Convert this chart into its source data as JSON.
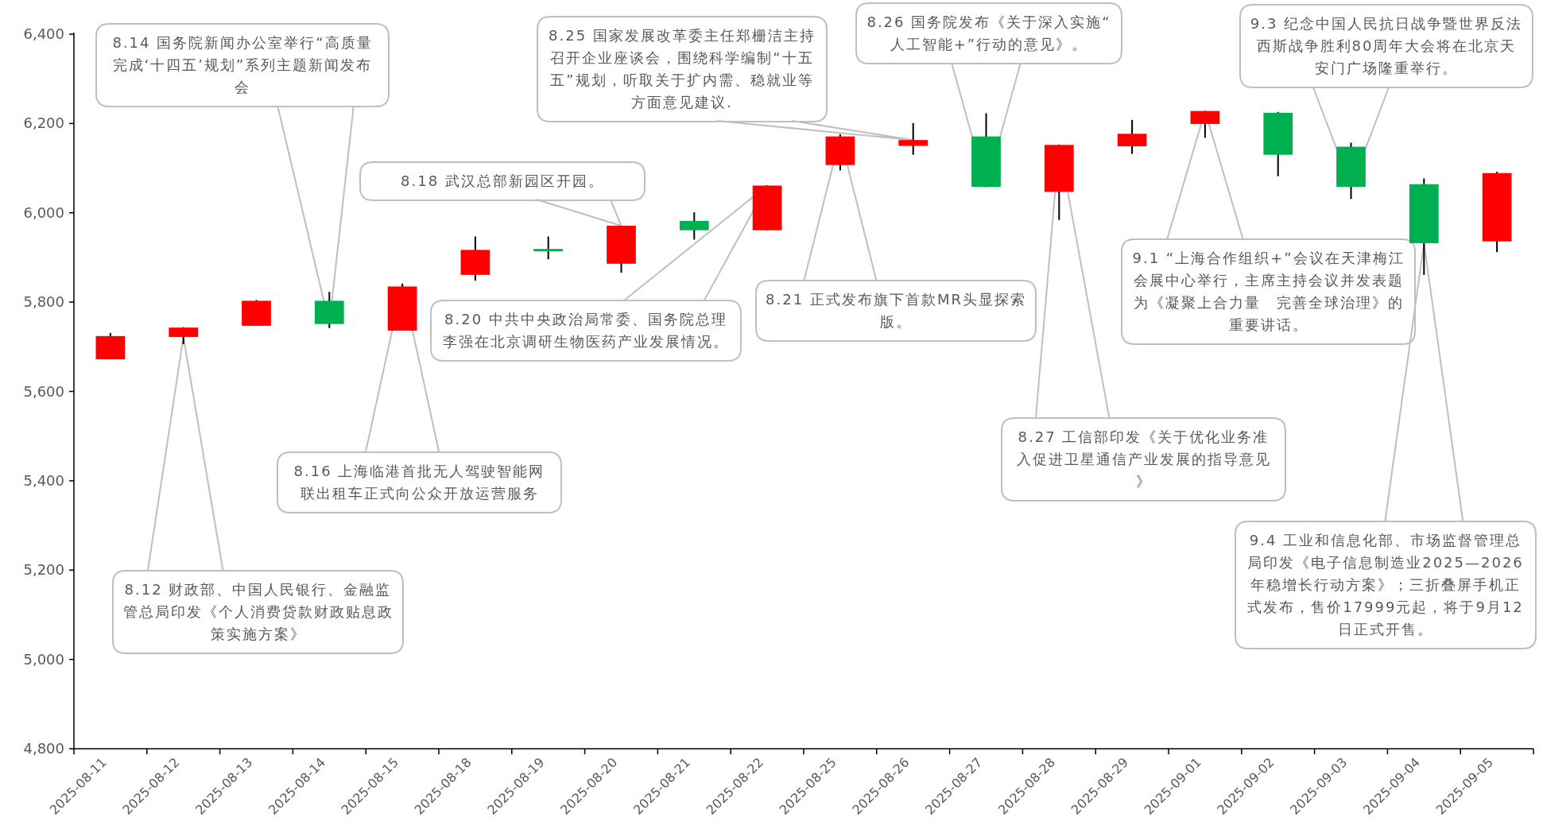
{
  "chart_data": {
    "type": "candlestick",
    "categories": [
      "2025-08-11",
      "2025-08-12",
      "2025-08-13",
      "2025-08-14",
      "2025-08-15",
      "2025-08-18",
      "2025-08-19",
      "2025-08-20",
      "2025-08-21",
      "2025-08-22",
      "2025-08-25",
      "2025-08-26",
      "2025-08-27",
      "2025-08-28",
      "2025-08-29",
      "2025-09-01",
      "2025-09-02",
      "2025-09-03",
      "2025-09-04",
      "2025-09-05"
    ],
    "ohlc": [
      [
        5672,
        5731,
        5672,
        5724
      ],
      [
        5722,
        5744,
        5706,
        5743
      ],
      [
        5747,
        5805,
        5747,
        5803
      ],
      [
        5803,
        5823,
        5742,
        5751
      ],
      [
        5736,
        5841,
        5736,
        5835
      ],
      [
        5861,
        5947,
        5848,
        5917
      ],
      [
        5917,
        5947,
        5896,
        5916
      ],
      [
        5886,
        5971,
        5866,
        5971
      ],
      [
        5982,
        6001,
        5940,
        5961
      ],
      [
        5961,
        6061,
        5961,
        6061
      ],
      [
        6107,
        6176,
        6095,
        6171
      ],
      [
        6150,
        6201,
        6130,
        6163
      ],
      [
        6171,
        6223,
        6058,
        6058
      ],
      [
        6047,
        6152,
        5984,
        6152
      ],
      [
        6149,
        6208,
        6132,
        6177
      ],
      [
        6199,
        6228,
        6168,
        6228
      ],
      [
        6224,
        6226,
        6082,
        6130
      ],
      [
        6148,
        6157,
        6031,
        6058
      ],
      [
        6064,
        6077,
        5861,
        5932
      ],
      [
        5936,
        6092,
        5912,
        6089
      ]
    ],
    "colors": [
      "#ff0000",
      "#ff0000",
      "#ff0000",
      "#00b050",
      "#ff0000",
      "#ff0000",
      "#00b050",
      "#ff0000",
      "#00b050",
      "#ff0000",
      "#ff0000",
      "#ff0000",
      "#00b050",
      "#ff0000",
      "#ff0000",
      "#ff0000",
      "#00b050",
      "#00b050",
      "#00b050",
      "#ff0000"
    ],
    "ylim": [
      4800,
      6400
    ],
    "yticks": [
      {
        "value": 4800,
        "label": "4,800"
      },
      {
        "value": 5000,
        "label": "5,000"
      },
      {
        "value": 5200,
        "label": "5,200"
      },
      {
        "value": 5400,
        "label": "5,400"
      },
      {
        "value": 5600,
        "label": "5,600"
      },
      {
        "value": 5800,
        "label": "5,800"
      },
      {
        "value": 6000,
        "label": "6,000"
      },
      {
        "value": 6200,
        "label": "6,200"
      },
      {
        "value": 6400,
        "label": "6,400"
      }
    ],
    "annotations": [
      "8.12 财政部、中国人民银行、金融监管总局印发《个人消费贷款财政贴息政策实施方案》",
      "8.14 国务院新闻办公室举行“高质量完成‘十四五’规划”系列主题新闻发布会",
      "8.16 上海临港首批无人驾驶智能网联出租车正式向公众开放运营服务",
      "8.18 武汉总部新园区开园。",
      "8.20 中共中央政治局常委、国务院总理李强在北京调研生物医药产业发展情况。",
      "8.21 正式发布旗下首款MR头显探索版。",
      "8.25 国家发展改革委主任郑栅洁主持召开企业座谈会，围绕科学编制“十五五”规划，听取关于扩内需、稳就业等方面意见建议.",
      "8.26 国务院发布《关于深入实施“人工智能+”行动的意见》。",
      "8.27 工信部印发《关于优化业务准入促进卫星通信产业发展的指导意见》",
      "9.1 “上海合作组织+”会议在天津梅江会展中心举行，主席主持会议并发表题为《凝聚上合力量　完善全球治理》的重要讲话。",
      "9.3 纪念中国人民抗日战争暨世界反法西斯战争胜利80周年大会将在北京天安门广场隆重举行。",
      "9.4 工业和信息化部、市场监督管理总局印发《电子信息制造业2025—2026年稳增长行动方案》；三折叠屏手机正式发布，售价17999元起，将于9月12日正式开售。"
    ]
  }
}
